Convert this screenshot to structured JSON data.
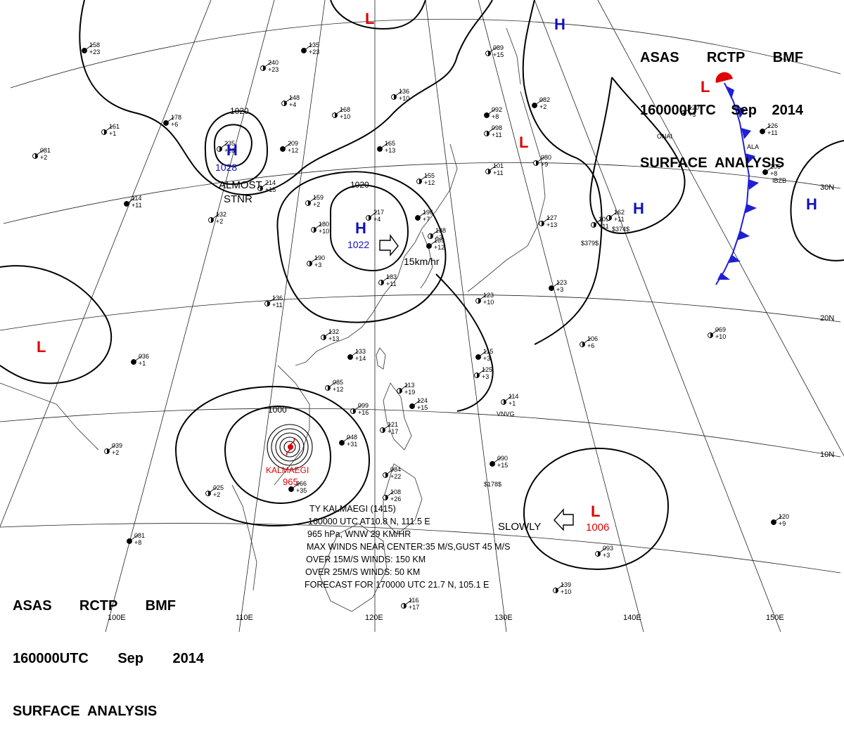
{
  "header": {
    "line1": [
      "ASAS",
      "RCTP",
      "BMF"
    ],
    "line2": [
      "160000UTC",
      "Sep",
      "2014"
    ],
    "line3": "SURFACE  ANALYSIS"
  },
  "colors": {
    "isobar": "#000000",
    "pressure_center": "#e00000",
    "high_center": "#1010c0",
    "cold_front": "#1f1fd6",
    "typhoon": "#e00000"
  },
  "longitudes": [
    "100E",
    "110E",
    "120E",
    "130E",
    "140E",
    "150E"
  ],
  "latitudes": [
    "30N",
    "20N",
    "10N"
  ],
  "isobar_labels": [
    "1020",
    "1020",
    "1000"
  ],
  "pressure_systems": [
    {
      "type": "H",
      "value": "1028",
      "label": "ALMOST",
      "label2": "STNR"
    },
    {
      "type": "H",
      "value": "1022",
      "movement": "15km/hr"
    },
    {
      "type": "H",
      "value": ""
    },
    {
      "type": "H",
      "value": ""
    },
    {
      "type": "H",
      "value": ""
    },
    {
      "type": "L",
      "value": ""
    },
    {
      "type": "L",
      "value": ""
    },
    {
      "type": "L",
      "value": ""
    },
    {
      "type": "L",
      "value": ""
    },
    {
      "type": "L",
      "value": "1006",
      "movement": "SLOWLY"
    }
  ],
  "typhoon": {
    "name": "KALMAEGI",
    "pressure": "965",
    "bulletin": [
      "TY  KALMAEGI  (1415)",
      "160000  UTC   AT10.8 N, 111.5 E",
      "965 hPa, WNW  29 KM/HR",
      "MAX WINDS NEAR CENTER:35 M/S,GUST 45 M/S",
      "OVER 15M/S WINDS: 150 KM",
      "OVER 25M/S WINDS: 50 KM",
      "FORECAST FOR 170000 UTC 21.7 N, 105.1 E"
    ]
  },
  "station_plots": [
    [
      "158",
      "+23"
    ],
    [
      "161",
      "+1"
    ],
    [
      "081",
      "+2"
    ],
    [
      "178",
      "+6"
    ],
    [
      "235",
      "+23"
    ],
    [
      "240",
      "+23"
    ],
    [
      "135",
      "+23"
    ],
    [
      "148",
      "+4"
    ],
    [
      "168",
      "+10"
    ],
    [
      "209",
      "+12"
    ],
    [
      "136",
      "+10"
    ],
    [
      "214",
      "+15"
    ],
    [
      "114",
      "+11"
    ],
    [
      "132",
      "+2"
    ],
    [
      "159",
      "+2"
    ],
    [
      "165",
      "+13"
    ],
    [
      "155",
      "+12"
    ],
    [
      "217",
      "+4"
    ],
    [
      "196",
      "+7"
    ],
    [
      "188",
      "+3"
    ],
    [
      "180",
      "+10"
    ],
    [
      "169",
      "+12"
    ],
    [
      "190",
      "+3"
    ],
    [
      "183",
      "+11"
    ],
    [
      "036",
      "+1"
    ],
    [
      "136",
      "+11"
    ],
    [
      "132",
      "+13"
    ],
    [
      "133",
      "+14"
    ],
    [
      "085",
      "+12"
    ],
    [
      "113",
      "+19"
    ],
    [
      "124",
      "+15"
    ],
    [
      "099",
      "+16"
    ],
    [
      "121",
      "+17"
    ],
    [
      "048",
      "+31"
    ],
    [
      "039",
      "+2"
    ],
    [
      "025",
      "+2"
    ],
    [
      "966",
      "+35"
    ],
    [
      "084",
      "+22"
    ],
    [
      "108",
      "+26"
    ],
    [
      "081",
      "+8"
    ],
    [
      "116",
      "+17"
    ],
    [
      "089",
      "+15"
    ],
    [
      "092",
      "+8"
    ],
    [
      "098",
      "+11"
    ],
    [
      "101",
      "+11"
    ],
    [
      "082",
      "+2"
    ],
    [
      "080",
      "+9"
    ],
    [
      "120",
      "+3"
    ],
    [
      "126",
      "+11"
    ],
    [
      "127",
      "+13"
    ],
    [
      "123",
      "+10"
    ],
    [
      "115",
      "+3"
    ],
    [
      "125",
      "+3"
    ],
    [
      "114",
      "+1"
    ],
    [
      "123",
      "+3"
    ],
    [
      "106",
      "+6"
    ],
    [
      "069",
      "+10"
    ],
    [
      "090",
      "+15"
    ],
    [
      "093",
      "+3"
    ],
    [
      "139",
      "+10"
    ],
    [
      "120",
      "+9"
    ],
    [
      "109",
      "+11"
    ],
    [
      "162",
      "+11"
    ],
    [
      "105",
      "+8"
    ]
  ],
  "station_ids": [
    "ONAI",
    "IBZB",
    "$379$",
    "$374$",
    "$178$",
    "VNVG",
    "ALA"
  ]
}
